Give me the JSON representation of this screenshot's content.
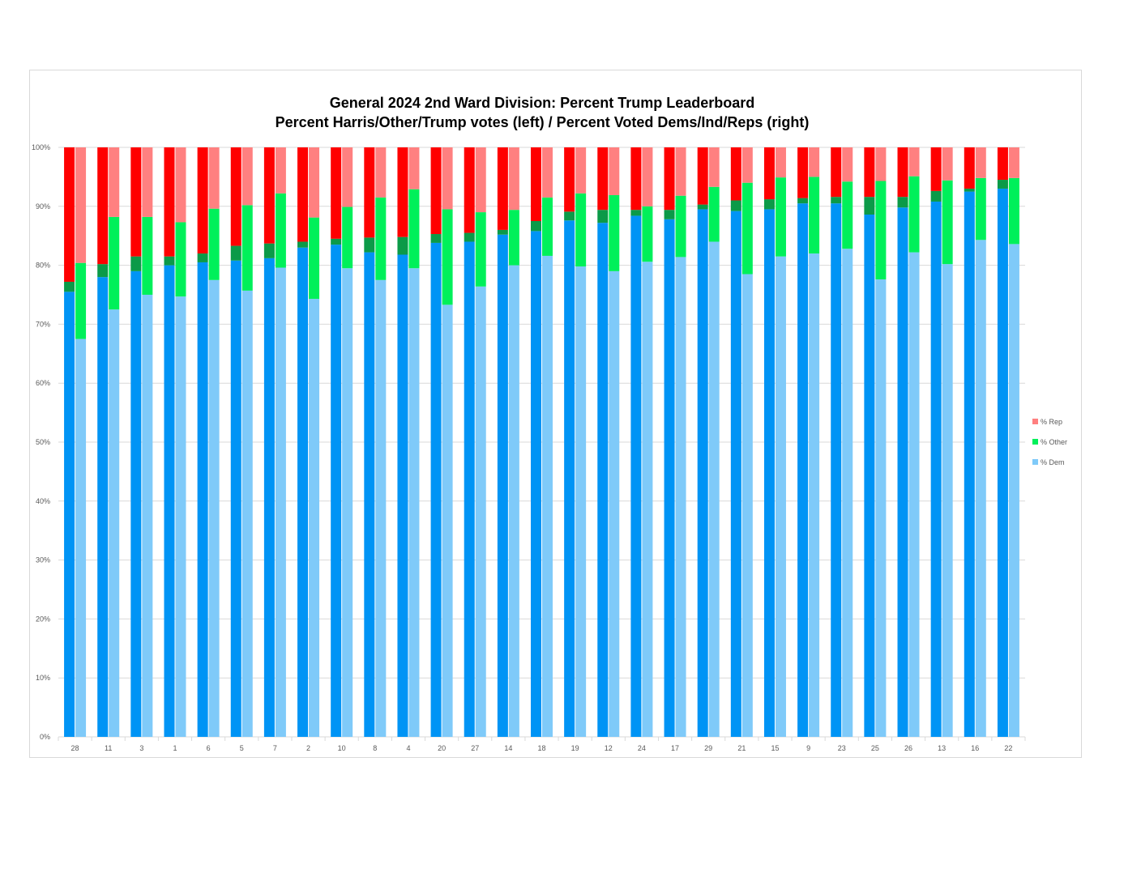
{
  "chart_data": {
    "type": "bar",
    "subtype": "stacked-100-paired",
    "title": "General 2024 2nd Ward Division: Percent Trump Leaderboard",
    "subtitle": "Percent Harris/Other/Trump votes (left) / Percent Voted Dems/Ind/Reps (right)",
    "ylim": [
      0,
      100
    ],
    "y_ticks": [
      "0%",
      "10%",
      "20%",
      "30%",
      "40%",
      "50%",
      "60%",
      "70%",
      "80%",
      "90%",
      "100%"
    ],
    "grid": true,
    "legend_position": "right",
    "categories": [
      "28",
      "11",
      "3",
      "1",
      "6",
      "5",
      "7",
      "2",
      "10",
      "8",
      "4",
      "20",
      "27",
      "14",
      "18",
      "19",
      "12",
      "24",
      "17",
      "29",
      "21",
      "15",
      "9",
      "23",
      "25",
      "26",
      "13",
      "16",
      "22"
    ],
    "votes": {
      "harris": [
        75.5,
        78.0,
        79.0,
        80.0,
        80.5,
        80.8,
        81.2,
        83.0,
        83.5,
        82.2,
        81.8,
        83.8,
        84.0,
        85.2,
        85.8,
        87.6,
        87.2,
        88.4,
        87.8,
        89.5,
        89.2,
        89.5,
        90.5,
        90.5,
        88.6,
        89.8,
        90.8,
        92.5,
        93.0
      ],
      "other": [
        1.7,
        2.2,
        2.5,
        1.5,
        1.5,
        2.5,
        2.5,
        1.0,
        1.0,
        2.5,
        3.0,
        1.5,
        1.5,
        0.8,
        1.7,
        1.5,
        2.2,
        1.0,
        1.6,
        0.8,
        1.8,
        1.7,
        0.9,
        1.1,
        3.0,
        1.8,
        1.8,
        0.5,
        1.5
      ],
      "trump": [
        22.8,
        19.8,
        18.5,
        18.5,
        18.0,
        16.7,
        16.3,
        16.0,
        15.5,
        15.3,
        15.2,
        14.7,
        14.5,
        14.0,
        12.5,
        10.9,
        10.6,
        10.6,
        10.6,
        9.7,
        9.0,
        8.8,
        8.6,
        8.4,
        8.4,
        8.4,
        7.4,
        7.0,
        5.5
      ]
    },
    "series": [
      {
        "name": "% Dem",
        "values": [
          67.5,
          72.5,
          75.0,
          74.7,
          77.5,
          75.7,
          79.6,
          74.3,
          79.5,
          77.5,
          79.5,
          73.3,
          76.4,
          80.0,
          81.6,
          79.8,
          79.0,
          80.6,
          81.4,
          84.0,
          78.5,
          81.5,
          82.0,
          82.8,
          77.6,
          82.2,
          80.2,
          84.3,
          83.6
        ]
      },
      {
        "name": "% Other",
        "values": [
          12.9,
          15.7,
          13.2,
          12.6,
          12.1,
          14.5,
          12.6,
          13.8,
          10.4,
          14.0,
          13.4,
          16.2,
          12.6,
          9.4,
          9.9,
          12.4,
          12.9,
          9.4,
          10.4,
          9.3,
          15.5,
          13.4,
          13.0,
          11.4,
          16.7,
          12.9,
          14.2,
          10.5,
          11.2
        ]
      },
      {
        "name": "% Rep",
        "values": [
          19.6,
          11.8,
          11.8,
          12.7,
          10.4,
          9.8,
          7.8,
          11.9,
          10.1,
          8.5,
          7.1,
          10.5,
          11.0,
          10.6,
          8.5,
          7.8,
          8.1,
          10.0,
          8.2,
          6.7,
          6.0,
          5.1,
          5.0,
          5.8,
          5.7,
          4.9,
          5.6,
          5.2,
          5.2
        ]
      }
    ],
    "colors": {
      "harris": "#0094f5",
      "other_vote": "#0b9a48",
      "trump": "#ff0000",
      "dem": "#7fcaf9",
      "other_reg": "#00f05a",
      "rep": "#ff8080",
      "grid": "#d9d9d9",
      "axis_text": "#595959"
    }
  }
}
